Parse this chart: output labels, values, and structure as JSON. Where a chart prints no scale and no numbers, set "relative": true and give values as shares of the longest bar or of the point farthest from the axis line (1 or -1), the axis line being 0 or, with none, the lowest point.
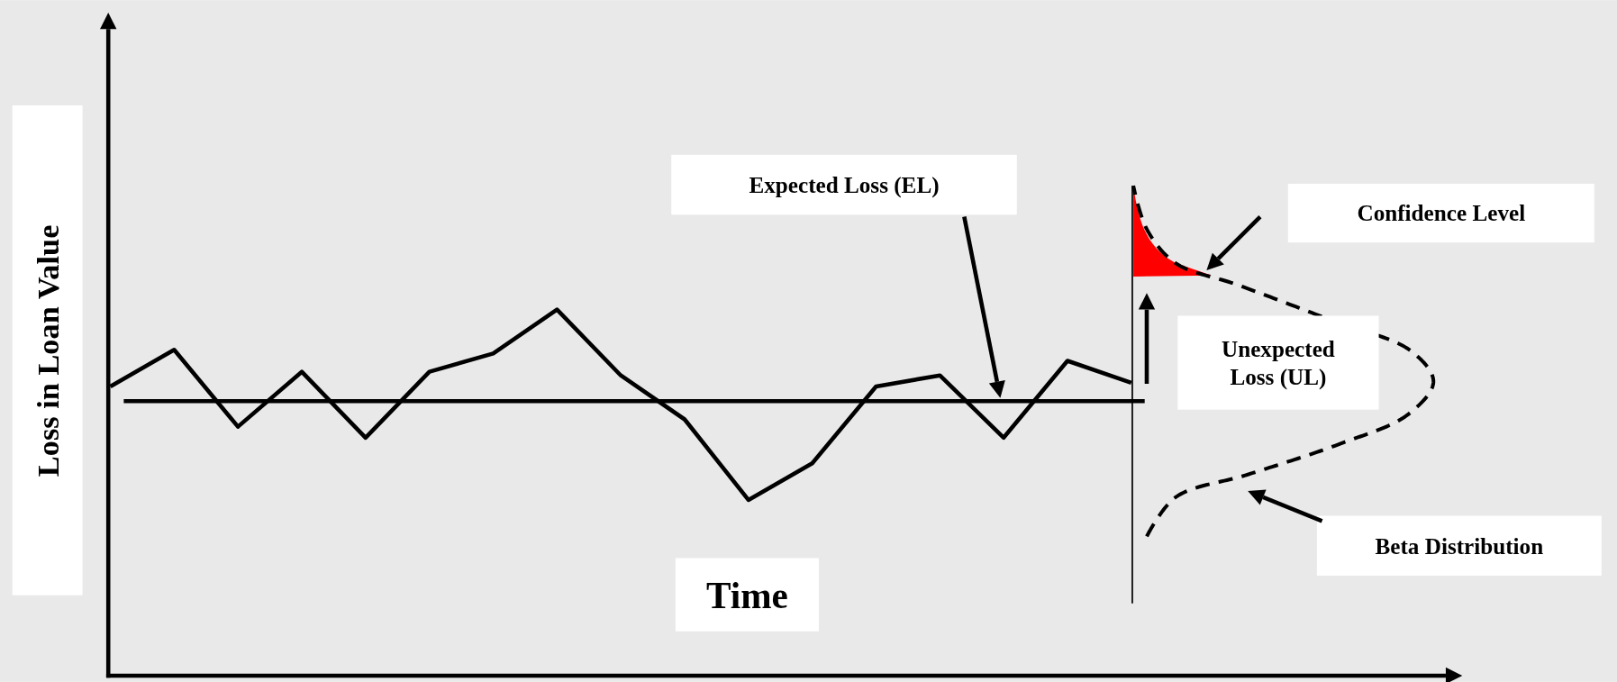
{
  "chart_data": {
    "type": "line",
    "relative": true,
    "categories": [
      null,
      null,
      null,
      null,
      null,
      null,
      null,
      null,
      null,
      null,
      null,
      null,
      null,
      null,
      null,
      null,
      null
    ],
    "series": [
      {
        "color": "#000000",
        "values": [
          0.79,
          0.89,
          0.68,
          0.83,
          0.65,
          0.83,
          0.88,
          1.0,
          0.82,
          0.7,
          0.48,
          0.58,
          0.79,
          0.82,
          0.65,
          0.86,
          0.8
        ]
      }
    ],
    "xlabel": "Time",
    "ylabel": "Loss in Loan Value",
    "ref_lines": [
      {
        "axis": "y",
        "value": 0.75,
        "label": "Expected Loss (EL)",
        "color": "#000000"
      }
    ],
    "annotations": [
      "Confidence Level",
      "Unexpected Loss  (UL)",
      "Beta Distribution"
    ],
    "grid": false,
    "legend": false,
    "marker": "none",
    "line_style": "solid"
  }
}
